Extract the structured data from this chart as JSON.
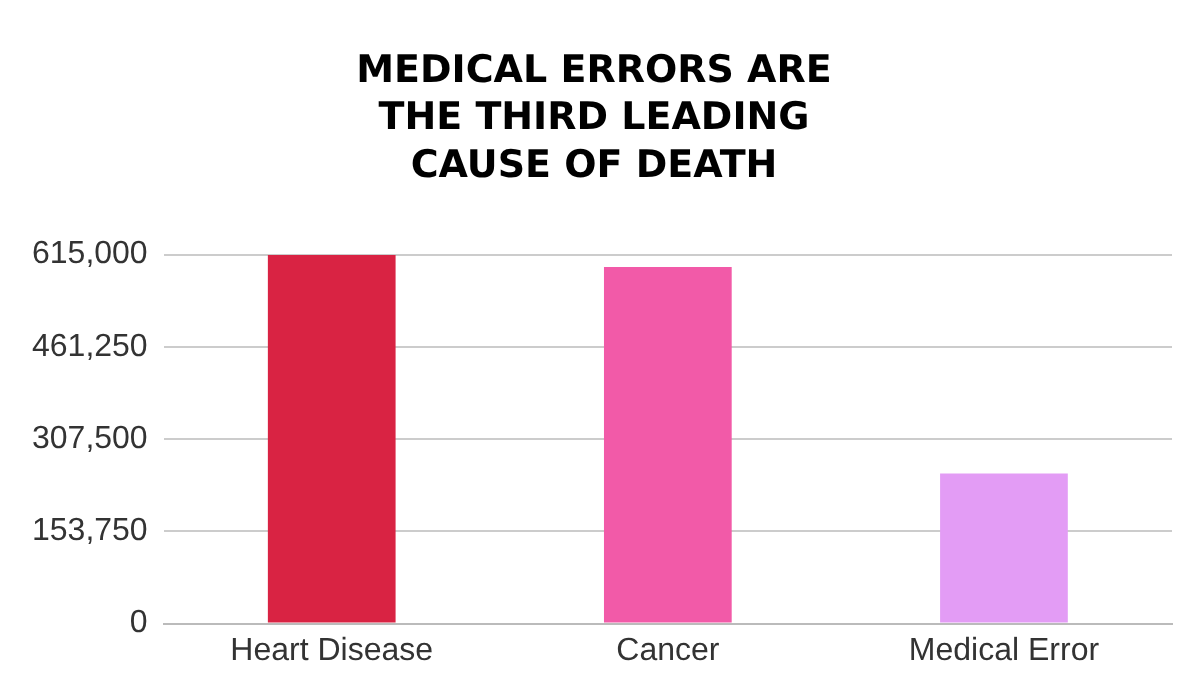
{
  "chart_data": {
    "type": "bar",
    "title": "MEDICAL ERRORS ARE\nTHE THIRD LEADING\nCAUSE OF DEATH",
    "categories": [
      "Heart Disease",
      "Cancer",
      "Medical Error"
    ],
    "values": [
      614000,
      594000,
      250000
    ],
    "colors": [
      "#d92343",
      "#f25aa8",
      "#e39cf5"
    ],
    "ylim": [
      0,
      615000
    ],
    "yticks": [
      0,
      {
        "value": 153750,
        "label": "153,750"
      },
      {
        "value": 307500,
        "label": "307,500"
      },
      {
        "value": 461250,
        "label": "461,250"
      },
      {
        "value": 615000,
        "label": "615,000"
      }
    ],
    "grid": "y"
  }
}
